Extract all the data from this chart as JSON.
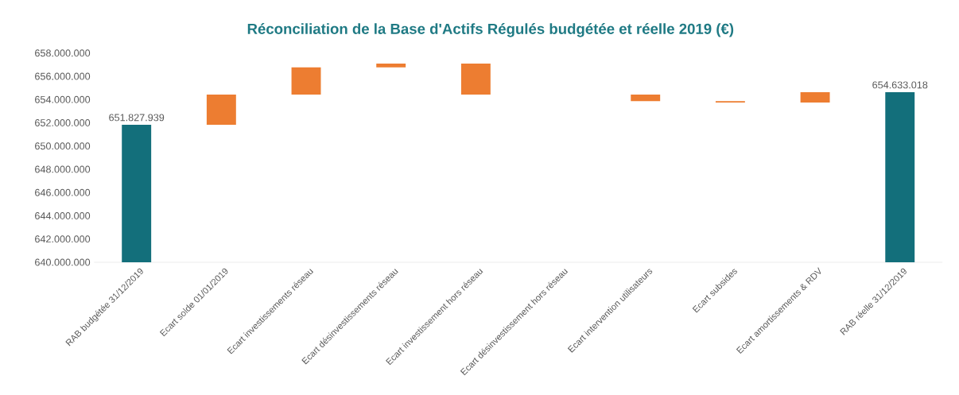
{
  "chart_data": {
    "type": "bar",
    "title": "Réconciliation de la Base d'Actifs Régulés budgétée et réelle 2019 (€)",
    "categories": [
      "RAB budgétée 31/12/2019",
      "Ecart solde 01/01/2019",
      "Ecart investissements réseau",
      "Ecart désinvestissements réseau",
      "Ecart investissement hors réseau",
      "Ecart désinvestissement hors réseau",
      "Ecart intervention utilisateurs",
      "Ecart subsides",
      "Ecart amortissements & RDV",
      "RAB réelle 31/12/2019"
    ],
    "values": [
      651827939,
      2600000,
      2340000,
      330000,
      2670000,
      null,
      570000,
      110000,
      880000,
      654633018
    ],
    "base": [
      null,
      651827939,
      654430000,
      656770000,
      654430000,
      null,
      653860000,
      653750000,
      653750000,
      null
    ],
    "colors": [
      "#136f7b",
      "#ed7d31",
      "#ed7d31",
      "#ed7d31",
      "#ed7d31",
      "#ed7d31",
      "#ed7d31",
      "#ed7d31",
      "#ed7d31",
      "#136f7b"
    ],
    "value_labels": [
      "651.827.939",
      null,
      null,
      null,
      null,
      null,
      null,
      null,
      null,
      "654.633.018"
    ],
    "ylim": [
      640000000,
      658000000
    ],
    "yticks": [
      {
        "value": 640000000,
        "label": "640.000.000"
      },
      {
        "value": 642000000,
        "label": "642.000.000"
      },
      {
        "value": 644000000,
        "label": "644.000.000"
      },
      {
        "value": 646000000,
        "label": "646.000.000"
      },
      {
        "value": 648000000,
        "label": "648.000.000"
      },
      {
        "value": 650000000,
        "label": "650.000.000"
      },
      {
        "value": 652000000,
        "label": "652.000.000"
      },
      {
        "value": 654000000,
        "label": "654.000.000"
      },
      {
        "value": 656000000,
        "label": "656.000.000"
      },
      {
        "value": 658000000,
        "label": "658.000.000"
      }
    ]
  }
}
